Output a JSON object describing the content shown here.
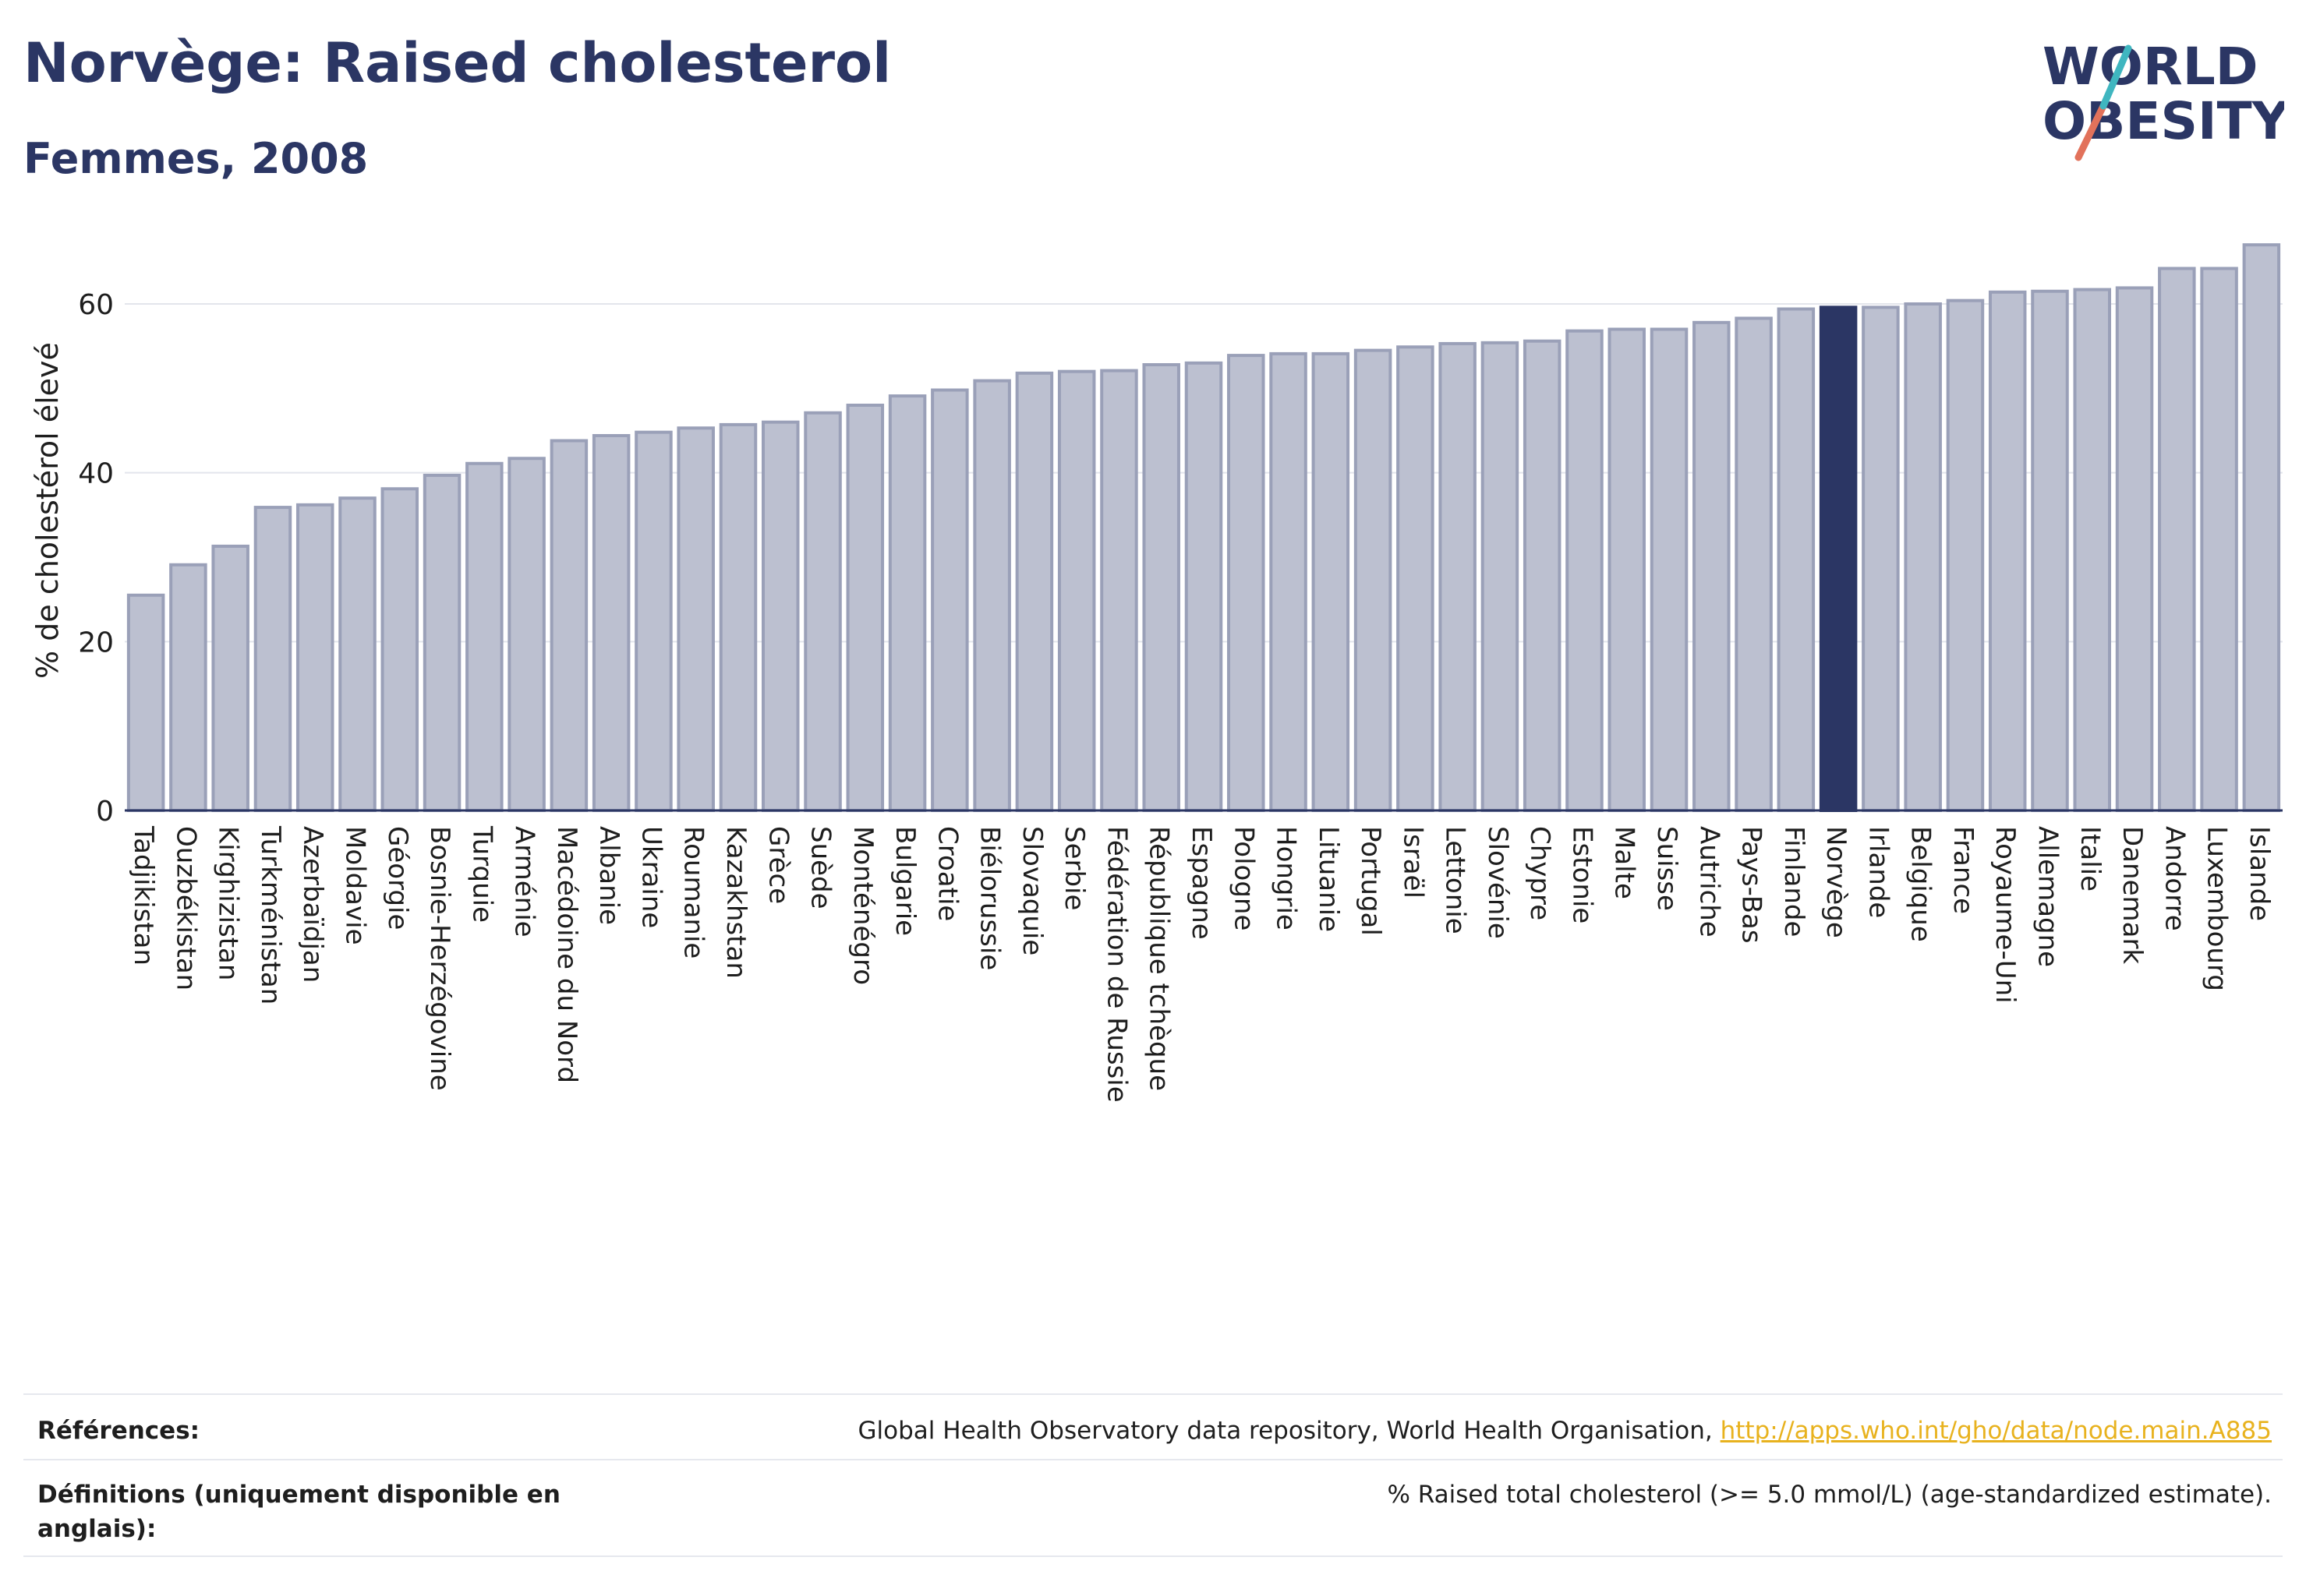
{
  "header": {
    "title": "Norvège: Raised cholesterol",
    "subtitle": "Femmes, 2008"
  },
  "logo": {
    "line1": "WORLD",
    "line2": "OBESITY"
  },
  "colors": {
    "bar": "#bcc0d0",
    "bar_edge": "#9aa0b8",
    "highlight": "#2b3664",
    "grid": "#e3e5ec",
    "axis": "#2b3664",
    "link": "#e8b21e"
  },
  "chart_data": {
    "type": "bar",
    "ylabel": "% de cholestérol élevé",
    "ylim": [
      0,
      70
    ],
    "yticks": [
      0,
      20,
      40,
      60
    ],
    "grid": true,
    "highlight": "Norvège",
    "categories": [
      "Tadjikistan",
      "Ouzbékistan",
      "Kirghizistan",
      "Turkménistan",
      "Azerbaïdjan",
      "Moldavie",
      "Géorgie",
      "Bosnie-Herzégovine",
      "Turquie",
      "Arménie",
      "Macédoine du Nord",
      "Albanie",
      "Ukraine",
      "Roumanie",
      "Kazakhstan",
      "Grèce",
      "Suède",
      "Monténégro",
      "Bulgarie",
      "Croatie",
      "Biélorussie",
      "Slovaquie",
      "Serbie",
      "Fédération de Russie",
      "République tchèque",
      "Espagne",
      "Pologne",
      "Hongrie",
      "Lituanie",
      "Portugal",
      "Israël",
      "Lettonie",
      "Slovénie",
      "Chypre",
      "Estonie",
      "Malte",
      "Suisse",
      "Autriche",
      "Pays-Bas",
      "Finlande",
      "Norvège",
      "Irlande",
      "Belgique",
      "France",
      "Royaume-Uni",
      "Allemagne",
      "Italie",
      "Danemark",
      "Andorre",
      "Luxembourg",
      "Islande"
    ],
    "values": [
      25.5,
      29.1,
      31.3,
      35.9,
      36.2,
      37.0,
      38.1,
      39.7,
      41.1,
      41.7,
      43.8,
      44.4,
      44.8,
      45.3,
      45.7,
      46.0,
      47.1,
      48.0,
      49.1,
      49.8,
      50.9,
      51.8,
      52.0,
      52.1,
      52.8,
      53.0,
      53.9,
      54.1,
      54.1,
      54.5,
      54.9,
      55.3,
      55.4,
      55.6,
      56.8,
      57.0,
      57.0,
      57.8,
      58.3,
      59.4,
      59.6,
      59.6,
      60.0,
      60.4,
      61.4,
      61.5,
      61.7,
      61.9,
      64.2,
      64.2,
      67.0
    ]
  },
  "footer": {
    "references_label": "Références:",
    "references_text": "Global Health Observatory data repository, World Health Organisation, ",
    "references_link": "http://apps.who.int/gho/data/node.main.A885",
    "definitions_label_1": "Définitions (uniquement disponible en",
    "definitions_label_2": "anglais):",
    "definitions_text": "% Raised total cholesterol (>= 5.0 mmol/L) (age-standardized estimate)."
  }
}
